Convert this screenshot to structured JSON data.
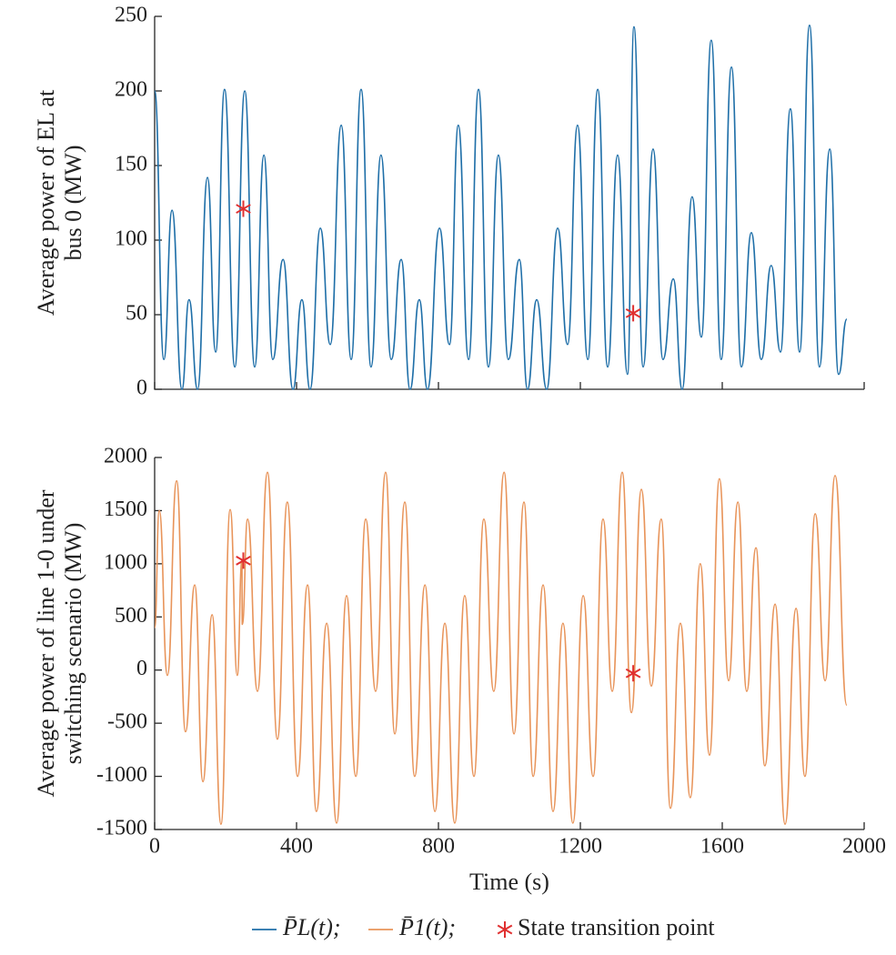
{
  "chart_data": [
    {
      "type": "line",
      "ylabel": [
        "Average power of EL at",
        "bus 0 (MW)"
      ],
      "xlim": [
        0,
        2000
      ],
      "xticks": [
        0,
        400,
        800,
        1200,
        1600,
        2000
      ],
      "show_xtick_labels": false,
      "ylim": [
        0,
        250
      ],
      "yticks": [
        0,
        50,
        100,
        150,
        200,
        250
      ],
      "series": [
        {
          "name": "P̄L(t);",
          "color": "#1f6fa8",
          "x": [
            0,
            26,
            49,
            77,
            97,
            121,
            149,
            172,
            197,
            226,
            254,
            282,
            308,
            333,
            362,
            390,
            415,
            438,
            467,
            495,
            526,
            554,
            582,
            610,
            638,
            667,
            695,
            720,
            746,
            769,
            803,
            831,
            856,
            885,
            913,
            941,
            969,
            997,
            1028,
            1051,
            1077,
            1105,
            1136,
            1164,
            1192,
            1221,
            1249,
            1277,
            1305,
            1333,
            1351,
            1377,
            1405,
            1433,
            1462,
            1487,
            1515,
            1541,
            1569,
            1597,
            1626,
            1654,
            1682,
            1710,
            1738,
            1764,
            1792,
            1818,
            1846,
            1874,
            1903,
            1928,
            1951
          ],
          "values": [
            200,
            20,
            120,
            0,
            60,
            0,
            142,
            25,
            201,
            15,
            200,
            15,
            157,
            20,
            87,
            0,
            60,
            0,
            108,
            30,
            177,
            20,
            201,
            15,
            157,
            20,
            87,
            0,
            60,
            0,
            108,
            30,
            177,
            20,
            201,
            15,
            157,
            20,
            87,
            0,
            60,
            0,
            108,
            30,
            177,
            20,
            201,
            15,
            157,
            10,
            243,
            15,
            161,
            20,
            74,
            0,
            129,
            35,
            234,
            20,
            216,
            15,
            105,
            20,
            83,
            25,
            188,
            25,
            244,
            15,
            161,
            10,
            47
          ]
        },
        {
          "name": "State transition point",
          "color": "#e03030",
          "marker": "asterisk",
          "x": [
            250,
            1349
          ],
          "values": [
            121,
            51
          ]
        }
      ]
    },
    {
      "type": "line",
      "ylabel": [
        "Average power of line 1-0 under",
        "switching scenario (MW)"
      ],
      "xlabel": "Time (s)",
      "xlim": [
        0,
        2000
      ],
      "xticks": [
        0,
        400,
        800,
        1200,
        1600,
        2000
      ],
      "show_xtick_labels": true,
      "ylim": [
        -1500,
        2000
      ],
      "yticks": [
        -1500,
        -1000,
        -500,
        0,
        500,
        1000,
        1500,
        2000
      ],
      "series": [
        {
          "name": "P̄1(t);",
          "color": "#e8945a",
          "x": [
            0,
            13,
            36,
            62,
            87,
            113,
            136,
            162,
            187,
            213,
            233,
            246,
            247,
            262,
            290,
            318,
            346,
            374,
            403,
            431,
            456,
            485,
            513,
            541,
            567,
            595,
            623,
            651,
            677,
            705,
            733,
            762,
            790,
            818,
            846,
            874,
            900,
            928,
            956,
            985,
            1013,
            1041,
            1067,
            1095,
            1123,
            1151,
            1179,
            1208,
            1236,
            1264,
            1290,
            1318,
            1344,
            1372,
            1400,
            1428,
            1454,
            1482,
            1510,
            1538,
            1564,
            1592,
            1618,
            1644,
            1669,
            1695,
            1720,
            1749,
            1777,
            1808,
            1833,
            1862,
            1890,
            1918,
            1951
          ],
          "values": [
            400,
            1500,
            -50,
            1780,
            -580,
            800,
            -1050,
            520,
            -1450,
            1510,
            -50,
            1030,
            430,
            1420,
            -200,
            1860,
            -650,
            1580,
            -1000,
            800,
            -1330,
            440,
            -1440,
            700,
            -1000,
            1420,
            -200,
            1860,
            -600,
            1580,
            -1000,
            800,
            -1330,
            440,
            -1440,
            700,
            -1000,
            1420,
            -200,
            1860,
            -600,
            1580,
            -1000,
            800,
            -1330,
            440,
            -1440,
            700,
            -1000,
            1420,
            -200,
            1860,
            -400,
            1700,
            -150,
            1420,
            -1300,
            440,
            -1200,
            1000,
            -800,
            1800,
            -100,
            1580,
            -200,
            1150,
            -900,
            620,
            -1450,
            580,
            -1000,
            1470,
            -100,
            1830,
            -330
          ]
        },
        {
          "color": "#e03030",
          "marker": "asterisk",
          "x": [
            250,
            1349
          ],
          "values": [
            1030,
            -30
          ]
        }
      ]
    }
  ]
}
